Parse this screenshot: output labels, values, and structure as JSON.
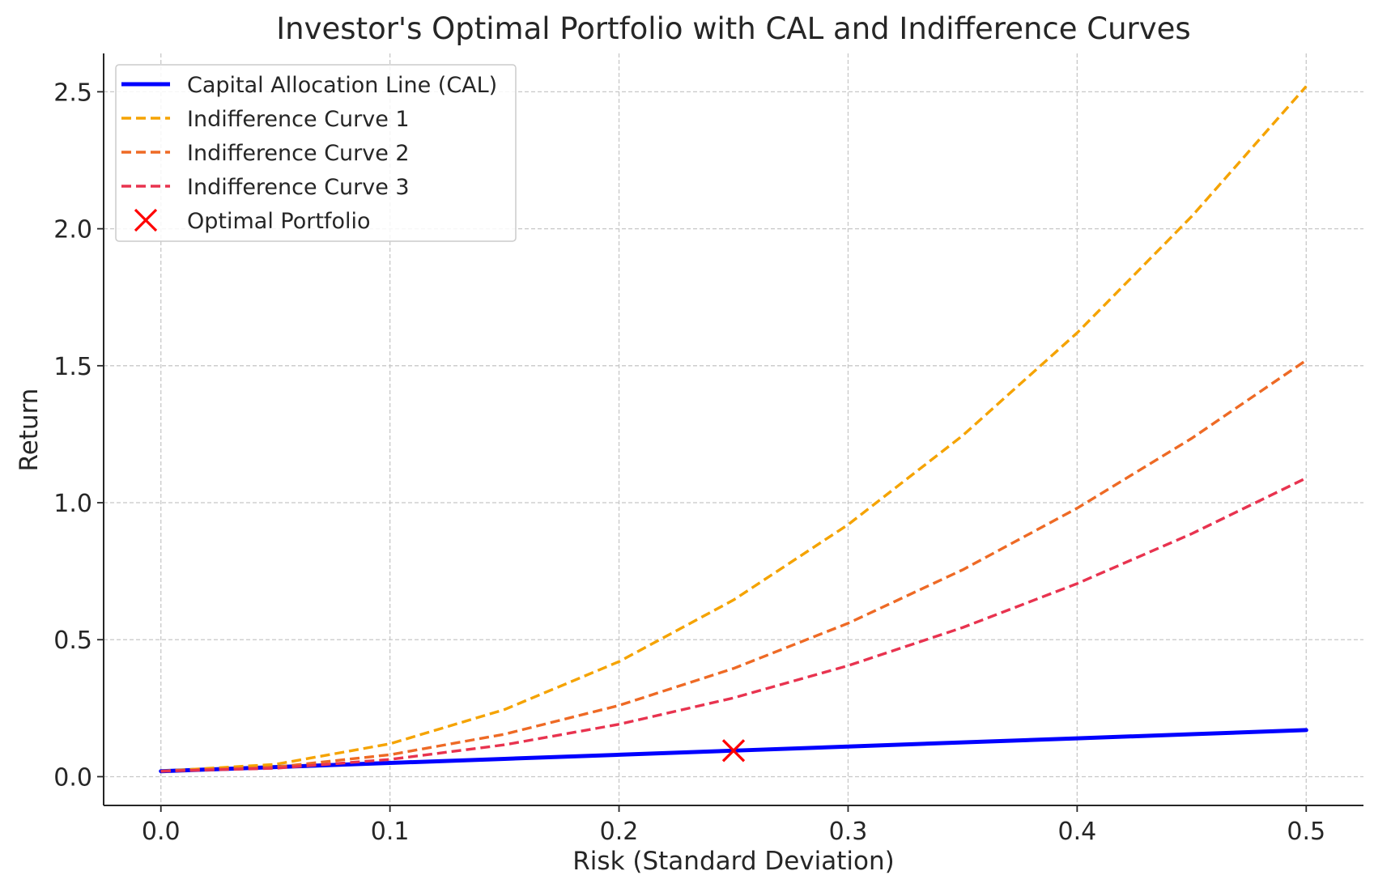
{
  "chart_data": {
    "type": "line",
    "title": "Investor's Optimal Portfolio with CAL and Indifference Curves",
    "xlabel": "Risk (Standard Deviation)",
    "ylabel": "Return",
    "xlim": [
      -0.025,
      0.525
    ],
    "ylim": [
      -0.105,
      2.64
    ],
    "xticks": [
      0.0,
      0.1,
      0.2,
      0.3,
      0.4,
      0.5
    ],
    "yticks": [
      0.0,
      0.5,
      1.0,
      1.5,
      2.0,
      2.5
    ],
    "xtick_labels": [
      "0.0",
      "0.1",
      "0.2",
      "0.3",
      "0.4",
      "0.5"
    ],
    "ytick_labels": [
      "0.0",
      "0.5",
      "1.0",
      "1.5",
      "2.0",
      "2.5"
    ],
    "grid": true,
    "legend_position": "top-left",
    "series": [
      {
        "name": "Capital Allocation Line (CAL)",
        "style": "solid",
        "color": "#0000ff",
        "x": [
          0.0,
          0.05,
          0.1,
          0.15,
          0.2,
          0.25,
          0.3,
          0.35,
          0.4,
          0.45,
          0.5
        ],
        "y": [
          0.02,
          0.035,
          0.05,
          0.065,
          0.08,
          0.095,
          0.11,
          0.125,
          0.14,
          0.155,
          0.17
        ]
      },
      {
        "name": "Indifference Curve 1",
        "style": "dashed",
        "color": "#f5a300",
        "x": [
          0.0,
          0.05,
          0.1,
          0.15,
          0.2,
          0.25,
          0.3,
          0.35,
          0.4,
          0.45,
          0.5
        ],
        "y": [
          0.02,
          0.045,
          0.12,
          0.245,
          0.42,
          0.645,
          0.92,
          1.245,
          1.62,
          2.045,
          2.52
        ]
      },
      {
        "name": "Indifference Curve 2",
        "style": "dashed",
        "color": "#ee6a25",
        "x": [
          0.0,
          0.05,
          0.1,
          0.15,
          0.2,
          0.25,
          0.3,
          0.35,
          0.4,
          0.45,
          0.5
        ],
        "y": [
          0.02,
          0.035,
          0.08,
          0.155,
          0.26,
          0.395,
          0.56,
          0.755,
          0.98,
          1.235,
          1.52
        ]
      },
      {
        "name": "Indifference Curve 3",
        "style": "dashed",
        "color": "#e8334f",
        "x": [
          0.0,
          0.05,
          0.1,
          0.15,
          0.2,
          0.25,
          0.3,
          0.35,
          0.4,
          0.45,
          0.5
        ],
        "y": [
          0.02,
          0.0307,
          0.0628,
          0.1163,
          0.1912,
          0.2875,
          0.4052,
          0.5443,
          0.7048,
          0.8867,
          1.09
        ]
      }
    ],
    "points": [
      {
        "name": "Optimal Portfolio",
        "marker": "x",
        "color": "#ff0000",
        "x": 0.25,
        "y": 0.095
      }
    ]
  }
}
